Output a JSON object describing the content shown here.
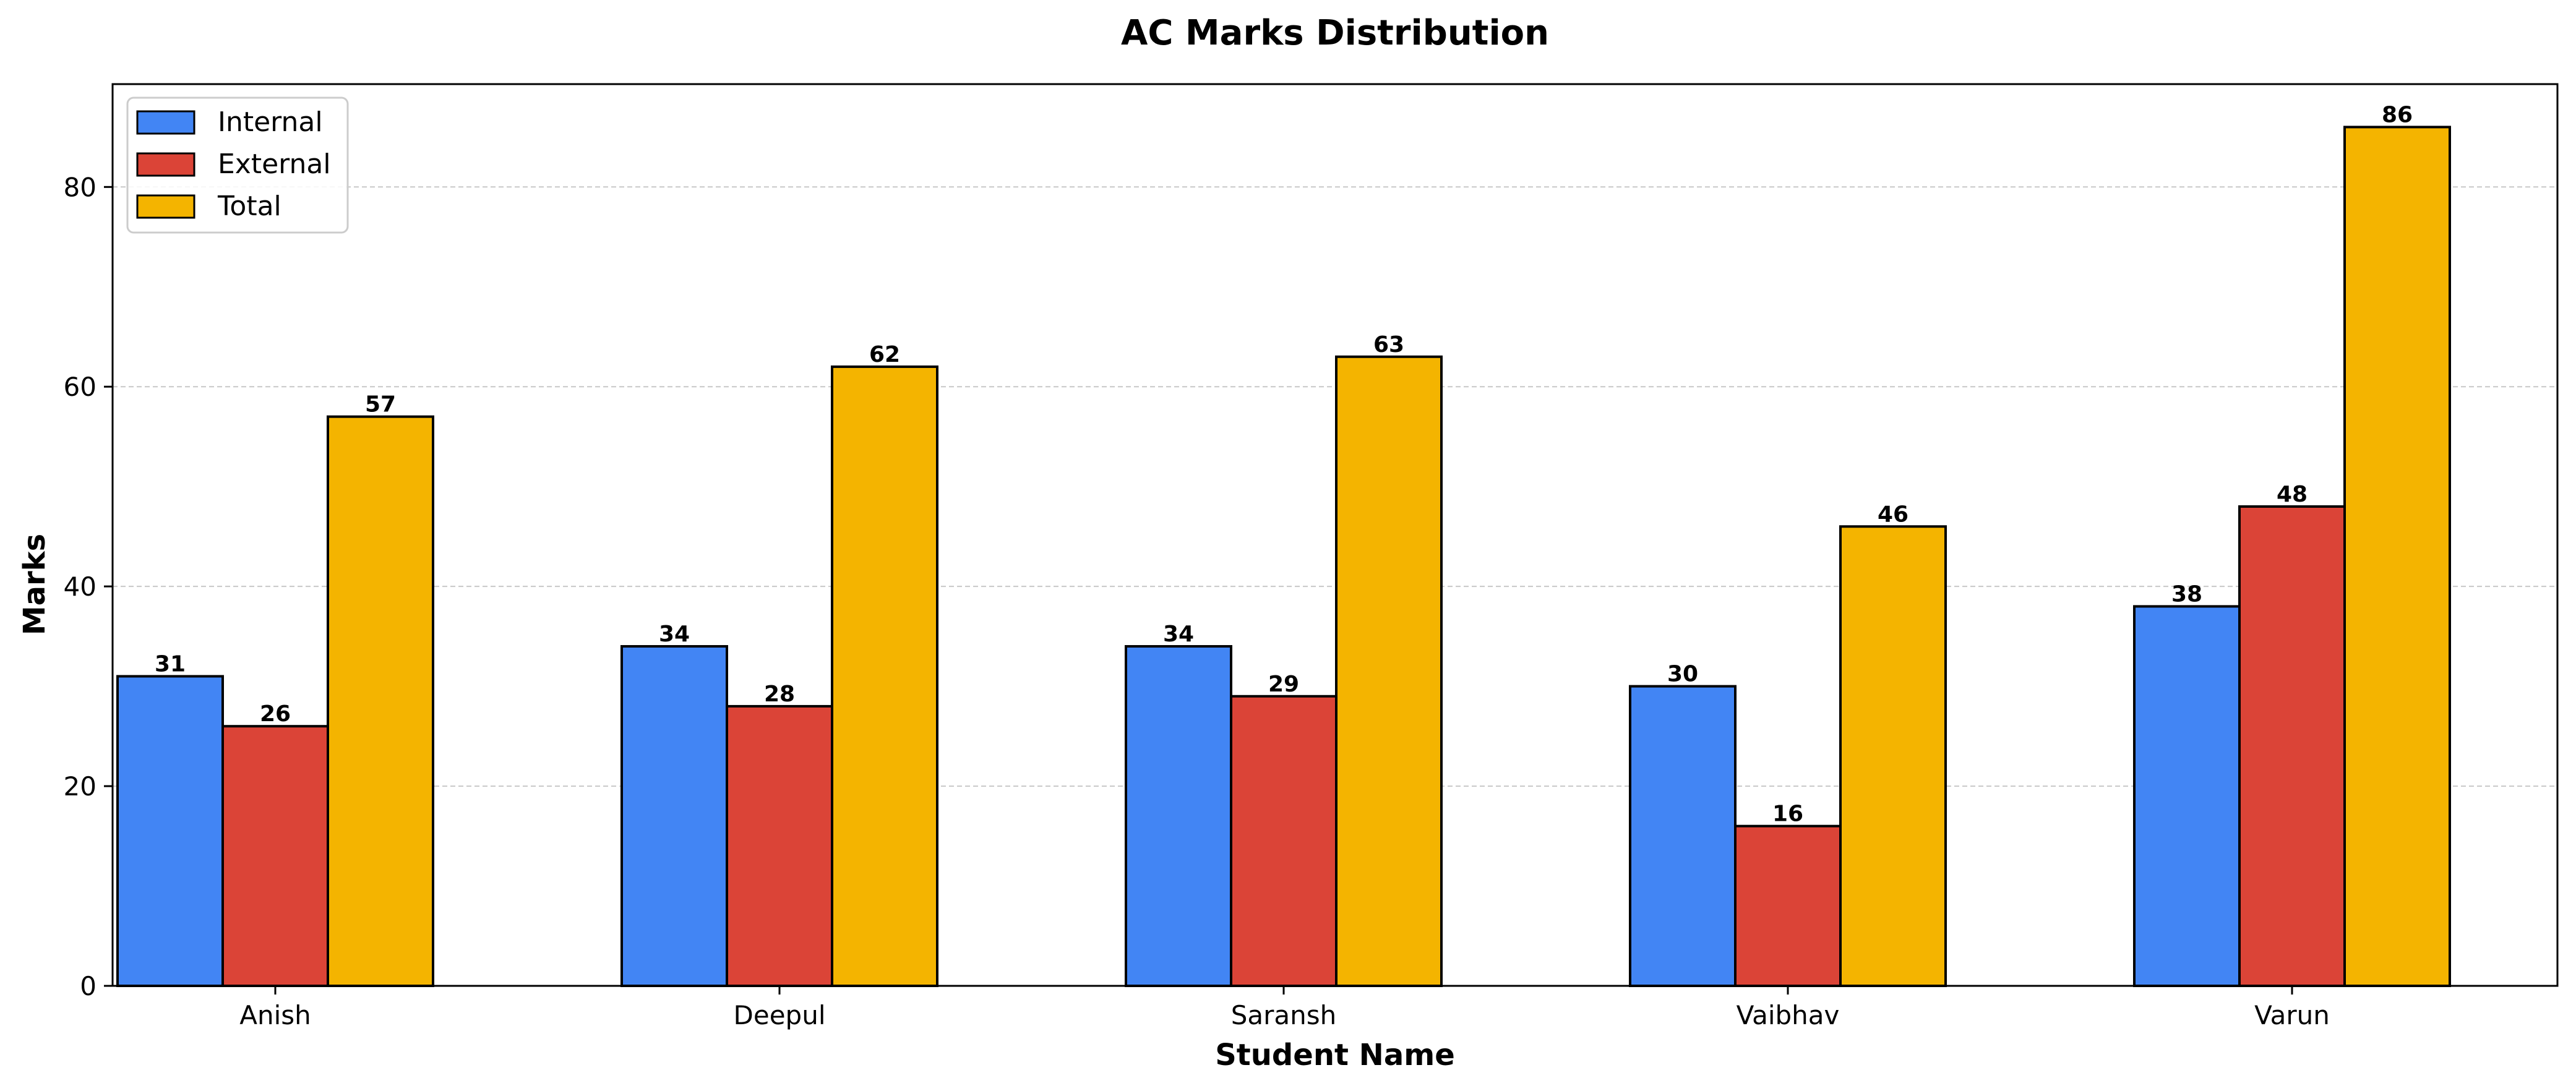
{
  "chart_data": {
    "type": "bar",
    "title": "AC Marks Distribution",
    "xlabel": "Student Name",
    "ylabel": "Marks",
    "categories": [
      "Anish",
      "Deepul",
      "Saransh",
      "Vaibhav",
      "Varun"
    ],
    "series": [
      {
        "name": "Internal",
        "color": "#4285f4",
        "values": [
          31,
          34,
          34,
          30,
          38
        ]
      },
      {
        "name": "External",
        "color": "#db4437",
        "values": [
          26,
          28,
          29,
          16,
          48
        ]
      },
      {
        "name": "Total",
        "color": "#f4b400",
        "values": [
          57,
          62,
          63,
          46,
          86
        ]
      }
    ],
    "ylim": [
      0,
      90.3
    ],
    "yticks": [
      0,
      20,
      40,
      60,
      80
    ],
    "grid": "y",
    "legend_position": "top-left"
  }
}
